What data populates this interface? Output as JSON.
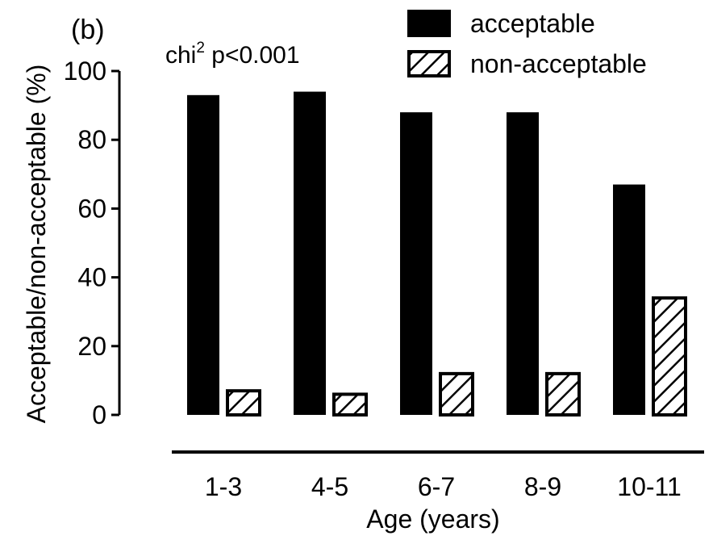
{
  "chart_data": {
    "type": "bar",
    "panel_label": "(b)",
    "annotation": {
      "base": "chi",
      "superscript": "2",
      "rest": " p<0.001"
    },
    "xlabel": "Age (years)",
    "ylabel": "Acceptable/non-acceptable (%)",
    "ylim": [
      0,
      100
    ],
    "yticks": [
      0,
      20,
      40,
      60,
      80,
      100
    ],
    "categories": [
      "1-3",
      "4-5",
      "6-7",
      "8-9",
      "10-11"
    ],
    "series": [
      {
        "name": "acceptable",
        "fill": "solid",
        "color": "#000000",
        "values": [
          93,
          94,
          88,
          88,
          67
        ]
      },
      {
        "name": "non-acceptable",
        "fill": "hatched",
        "color": "#000000",
        "values": [
          7,
          6,
          12,
          12,
          34
        ]
      }
    ],
    "legend_position": "top-right",
    "grid": false
  }
}
